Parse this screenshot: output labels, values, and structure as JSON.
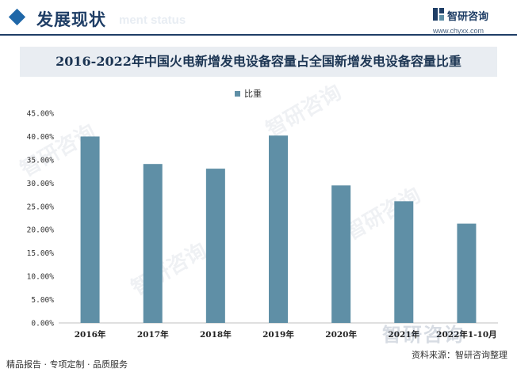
{
  "header": {
    "section_title": "发展现状",
    "section_subtitle": "ment status",
    "brand_name": "智研咨询",
    "brand_url": "www.chyxx.com"
  },
  "watermark": {
    "text": "智研咨询"
  },
  "footer": {
    "left": "精品报告 · 专项定制 · 品质服务",
    "source": "资料来源：智研咨询整理"
  },
  "colors": {
    "bar": "#5f8fa6",
    "accent": "#1f3e66"
  },
  "chart_data": {
    "type": "bar",
    "title": "2016-2022年中国火电新增发电设备容量占全国新增发电设备容量比重",
    "categories": [
      "2016年",
      "2017年",
      "2018年",
      "2019年",
      "2020年",
      "2021年",
      "2022年1-10月"
    ],
    "series": [
      {
        "name": "比重",
        "values": [
          40.0,
          34.1,
          33.1,
          40.2,
          29.5,
          26.1,
          21.3
        ]
      }
    ],
    "yticks": [
      "0.00%",
      "5.00%",
      "10.00%",
      "15.00%",
      "20.00%",
      "25.00%",
      "30.00%",
      "35.00%",
      "40.00%",
      "45.00%"
    ],
    "ylim": [
      0,
      45
    ],
    "legend_position": "top-center",
    "grid": false
  }
}
